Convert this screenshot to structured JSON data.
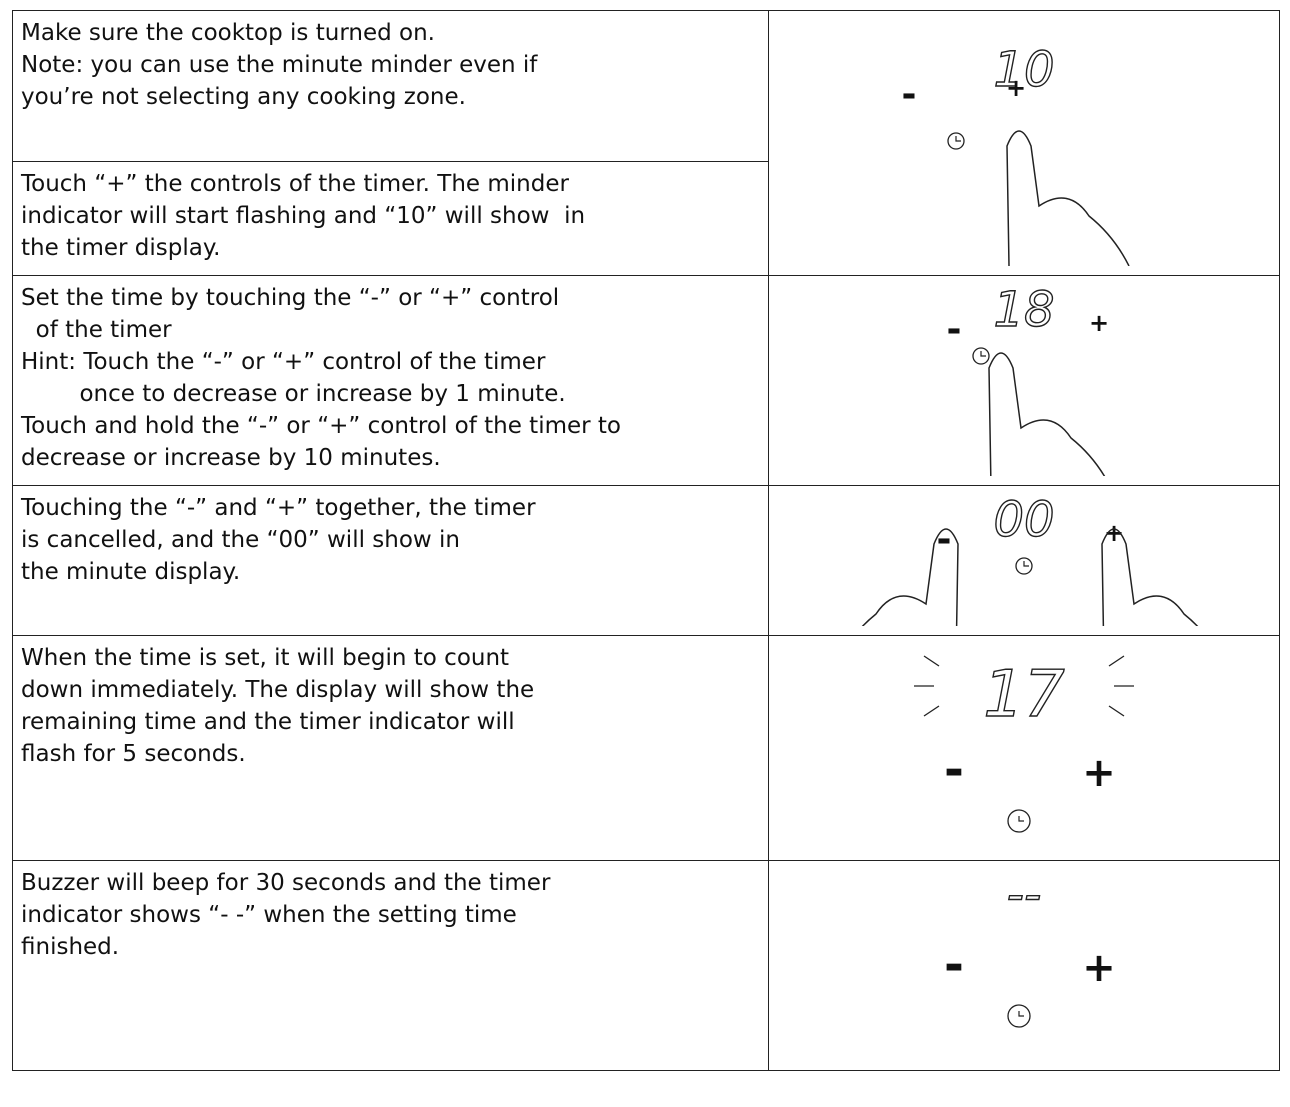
{
  "rows": [
    {
      "text": [
        "Make sure the cooktop is turned on.",
        "Note: you can use the minute minder even if",
        "you’re not selecting any cooking zone."
      ]
    },
    {
      "text": [
        "Touch “+” the controls of the timer. The minder",
        "indicator will start flashing and “10” will show  in",
        "the timer display."
      ]
    },
    {
      "text": [
        "Set the time by touching the “-” or “+” control",
        "  of the timer",
        "Hint: Touch the “-” or “+” control of the timer",
        "        once to decrease or increase by 1 minute.",
        "Touch and hold the “-” or “+” control of the timer to",
        "decrease or increase by 10 minutes."
      ]
    },
    {
      "text": [
        "Touching the “-” and “+” together, the timer",
        "is cancelled, and the “00” will show in",
        "the minute display."
      ]
    },
    {
      "text": [
        "When the time is set, it will begin to count",
        "down immediately. The display will show the",
        "remaining time and the timer indicator will",
        "flash for 5 seconds."
      ]
    },
    {
      "text": [
        "Buzzer will beep for 30 seconds and the timer",
        "indicator shows “- -” when the setting time",
        "finished."
      ]
    }
  ],
  "panels": [
    {
      "display": "10",
      "minus": "-",
      "plus": "+"
    },
    {
      "display": "18",
      "minus": "-",
      "plus": "+"
    },
    {
      "display": "00",
      "minus": "-",
      "plus": "+"
    },
    {
      "display": "17",
      "minus": "-",
      "plus": "+"
    },
    {
      "display": "--",
      "minus": "-",
      "plus": "+"
    }
  ]
}
